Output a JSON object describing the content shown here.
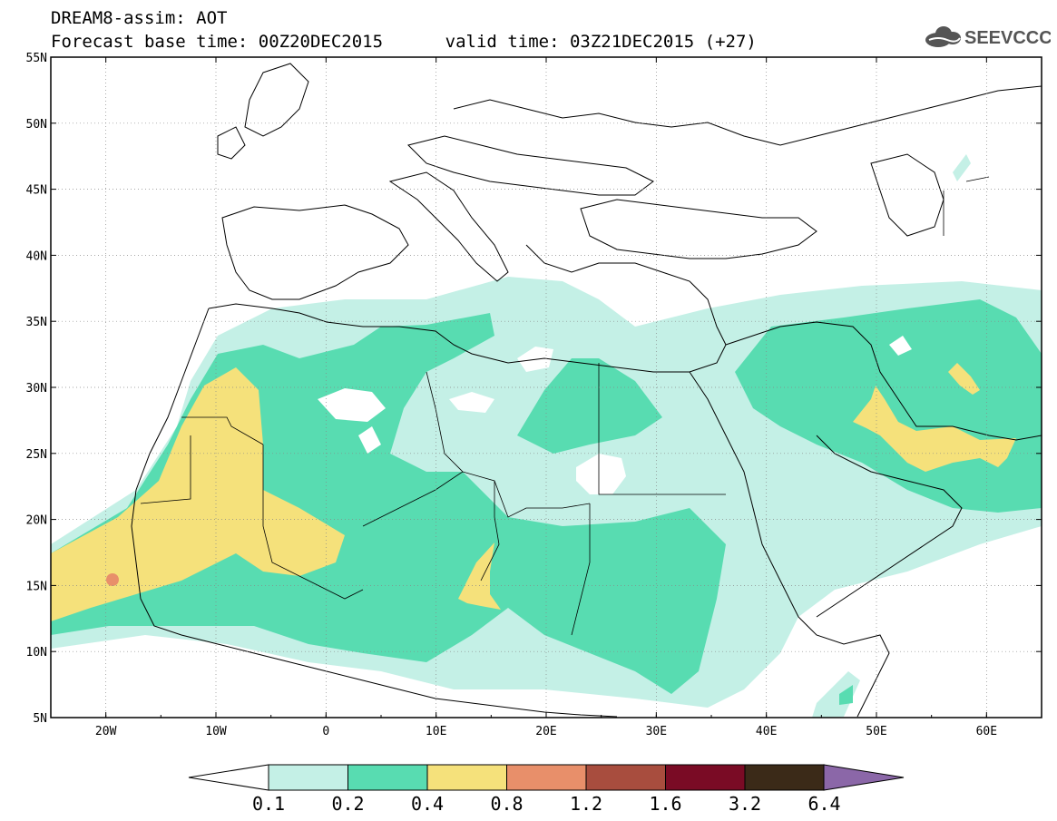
{
  "header": {
    "line1": "DREAM8-assim: AOT",
    "line2": "Forecast base time: 00Z20DEC2015      valid time: 03Z21DEC2015 (+27)"
  },
  "logo": {
    "text": "SEEVCCC",
    "icon": "cloud-icon"
  },
  "map": {
    "lon_range": [
      -25,
      65
    ],
    "lat_range": [
      5,
      55
    ],
    "lat_labels": [
      "55N",
      "50N",
      "45N",
      "40N",
      "35N",
      "30N",
      "25N",
      "20N",
      "15N",
      "10N",
      "5N"
    ],
    "lon_labels": [
      "20W",
      "10W",
      "0",
      "10E",
      "20E",
      "30E",
      "40E",
      "50E",
      "60E"
    ]
  },
  "colorbar": {
    "labels": [
      "0.1",
      "0.2",
      "0.4",
      "0.8",
      "1.2",
      "1.6",
      "3.2",
      "6.4"
    ],
    "colors": [
      "#c4f0e6",
      "#58dcb1",
      "#f5e17b",
      "#e88f6a",
      "#a84d3e",
      "#7a0b25",
      "#3b2a18",
      "#8b67a8"
    ]
  }
}
